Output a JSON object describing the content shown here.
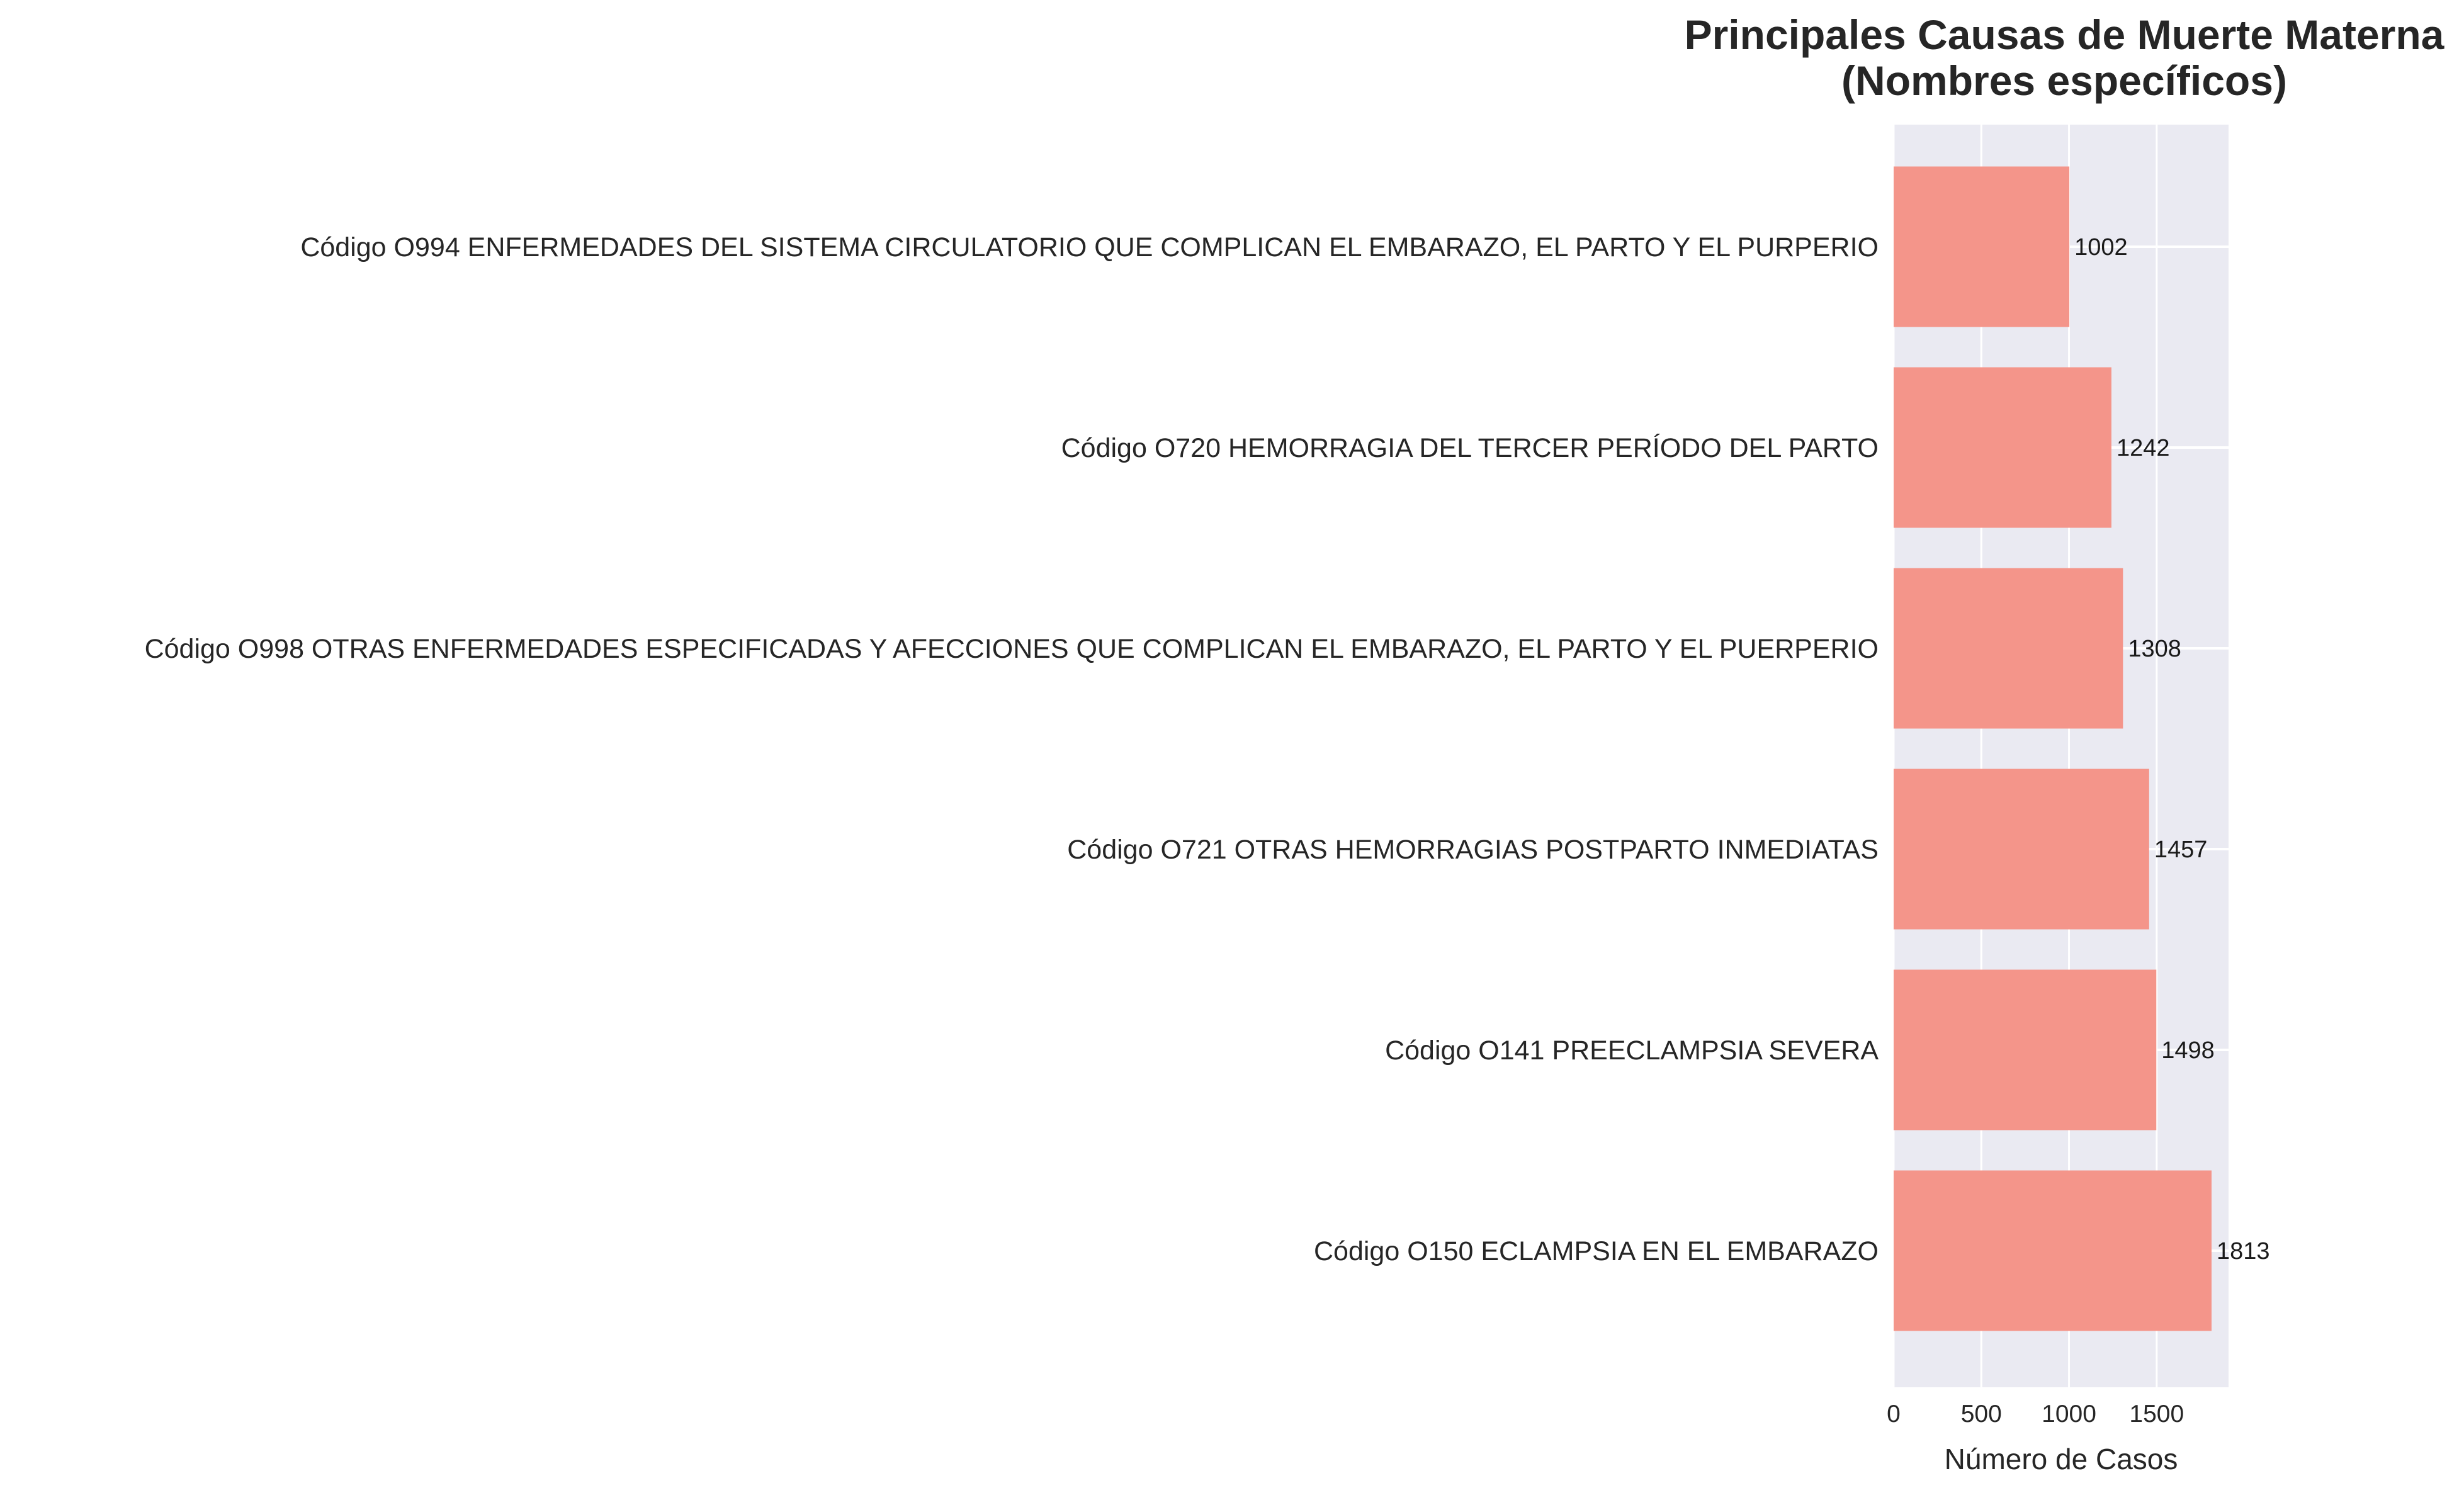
{
  "chart_data": {
    "type": "bar",
    "orientation": "horizontal",
    "title": [
      "Principales Causas de Muerte Materna",
      "(Nombres específicos)"
    ],
    "xlabel": "Número de Casos",
    "ylabel": "",
    "xlim": [
      0,
      1910
    ],
    "xticks": [
      0,
      500,
      1000,
      1500
    ],
    "grid": true,
    "categories": [
      "Código O994  ENFERMEDADES DEL SISTEMA CIRCULATORIO QUE COMPLICAN EL EMBARAZO, EL PARTO Y EL PURPERIO",
      "Código O720  HEMORRAGIA DEL TERCER PERÍODO DEL PARTO",
      "Código O998  OTRAS ENFERMEDADES ESPECIFICADAS Y AFECCIONES QUE COMPLICAN EL EMBARAZO, EL PARTO Y EL PUERPERIO",
      "Código O721  OTRAS HEMORRAGIAS POSTPARTO INMEDIATAS",
      "Código O141  PREECLAMPSIA SEVERA",
      "Código O150  ECLAMPSIA EN EL EMBARAZO"
    ],
    "values": [
      1002,
      1242,
      1308,
      1457,
      1498,
      1813
    ],
    "data_labels": [
      "1002",
      "1242",
      "1308",
      "1457",
      "1498",
      "1813"
    ],
    "colors": {
      "bar": "#f4958a",
      "plot_background": "#eaeaf2",
      "grid": "#ffffff",
      "text": "#262626"
    }
  }
}
